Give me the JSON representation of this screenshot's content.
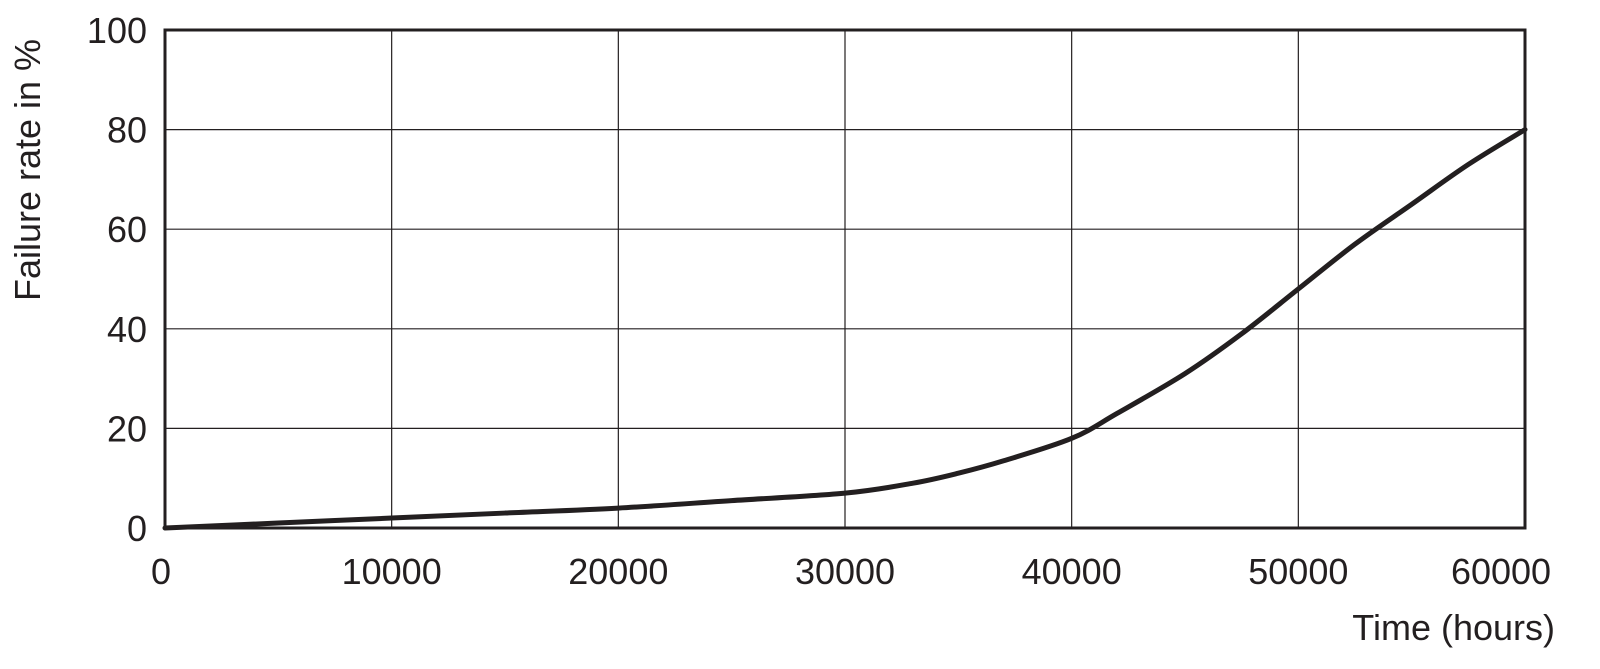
{
  "chart_data": {
    "type": "line",
    "title": "",
    "xlabel": "Time (hours)",
    "ylabel": "Failure rate in %",
    "xlim": [
      0,
      60000
    ],
    "ylim": [
      0,
      100
    ],
    "x_ticks": [
      0,
      10000,
      20000,
      30000,
      40000,
      50000,
      60000
    ],
    "y_ticks": [
      0,
      20,
      40,
      60,
      80,
      100
    ],
    "grid": true,
    "legend": "none",
    "colors": {
      "line": "#231f20",
      "grid": "#231f20",
      "text": "#231f20"
    },
    "series": [
      {
        "x": [
          0,
          5000,
          10000,
          15000,
          20000,
          25000,
          30000,
          33000,
          35000,
          37000,
          40000,
          42000,
          45000,
          47500,
          50000,
          52500,
          55000,
          57500,
          60000
        ],
        "y": [
          0,
          1,
          2,
          3,
          4,
          5.5,
          7,
          9,
          11,
          13.5,
          18,
          23,
          31,
          39,
          48,
          57,
          65,
          73,
          80
        ]
      }
    ]
  }
}
